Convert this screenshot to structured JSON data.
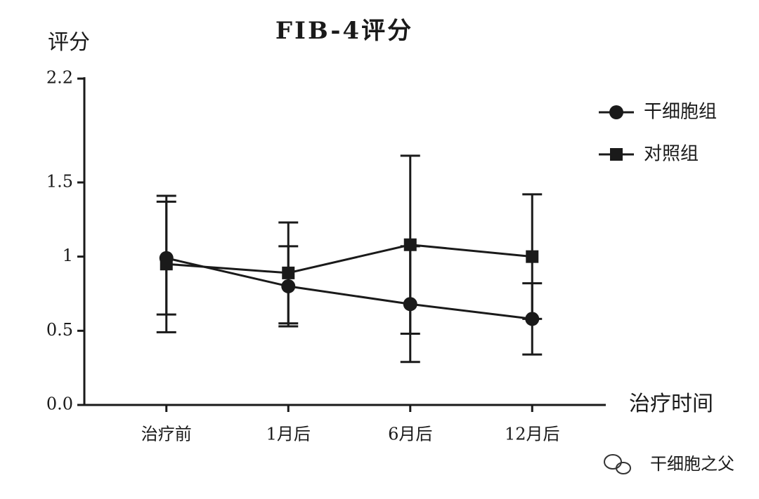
{
  "chart_data": {
    "type": "line",
    "title": "FIB-4评分",
    "y_label": "评分",
    "x_label": "治疗时间",
    "categories": [
      "治疗前",
      "1月后",
      "6月后",
      "12月后"
    ],
    "series": [
      {
        "name": "干细胞组",
        "marker": "circle",
        "color": "#1a1a1a",
        "values": [
          0.99,
          0.8,
          0.68,
          0.58
        ],
        "errors": [
          0.38,
          0.27,
          0.39,
          0.24
        ]
      },
      {
        "name": "对照组",
        "marker": "square",
        "color": "#1a1a1a",
        "values": [
          0.95,
          0.89,
          1.08,
          1.0
        ],
        "errors": [
          0.46,
          0.34,
          0.6,
          0.42
        ]
      }
    ],
    "ylim": [
      0,
      2.2
    ],
    "yticks": [
      {
        "value": 0,
        "label": "0.0"
      },
      0.5,
      1,
      1.5,
      2.2
    ],
    "legend": "top-right"
  },
  "watermark": "干细胞之父"
}
